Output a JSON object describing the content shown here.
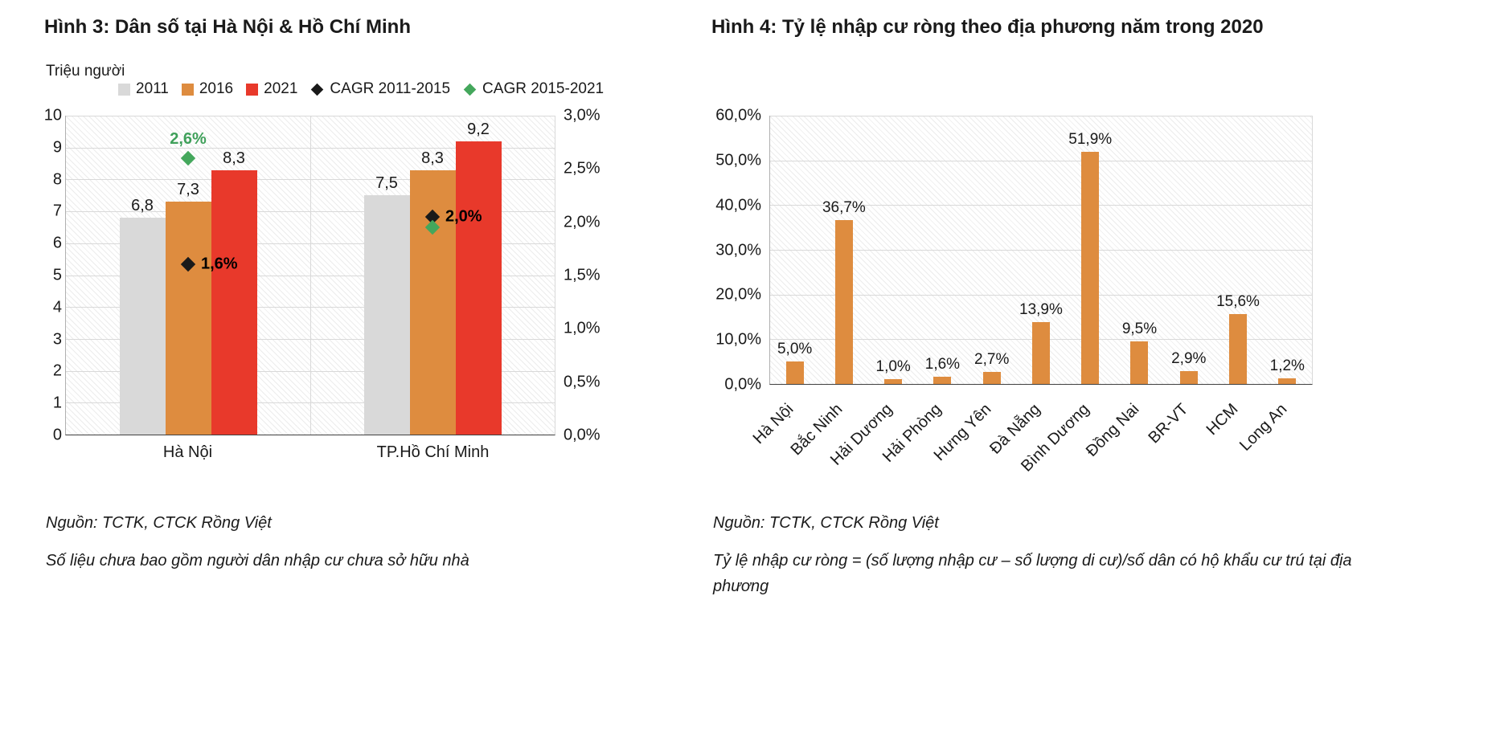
{
  "chart_data": [
    {
      "id": "fig3",
      "type": "bar",
      "title": "Hình 3: Dân số tại Hà Nội & Hồ Chí Minh",
      "ylabel": "Triệu người",
      "legend_position": "top",
      "grid": true,
      "plot_pattern": "diagonal-hatch",
      "legend": [
        {
          "label": "2011",
          "marker": "square",
          "color": "#D9D9D9"
        },
        {
          "label": "2016",
          "marker": "square",
          "color": "#DE8C3F"
        },
        {
          "label": "2021",
          "marker": "square",
          "color": "#E8392B"
        },
        {
          "label": "CAGR 2011-2015",
          "marker": "diamond",
          "color": "#1A1A1A"
        },
        {
          "label": "CAGR 2015-2021",
          "marker": "diamond",
          "color": "#44A75C"
        }
      ],
      "categories": [
        "Hà Nội",
        "TP.Hồ Chí Minh"
      ],
      "series": [
        {
          "name": "2011",
          "color": "#D9D9D9",
          "values": [
            6.8,
            7.5
          ],
          "labels": [
            "6,8",
            "7,5"
          ]
        },
        {
          "name": "2016",
          "color": "#DE8C3F",
          "values": [
            7.3,
            8.3
          ],
          "labels": [
            "7,3",
            "8,3"
          ]
        },
        {
          "name": "2021",
          "color": "#E8392B",
          "values": [
            8.3,
            9.2
          ],
          "labels": [
            "8,3",
            "9,2"
          ]
        }
      ],
      "cagr_series": [
        {
          "name": "CAGR 2011-2015",
          "color": "#1A1A1A",
          "label_color": "#000000",
          "points": [
            {
              "value": 1.6,
              "label": "1,6%",
              "label_pos": "right"
            },
            {
              "value": 2.05,
              "label": "2,0%",
              "label_pos": "right"
            }
          ]
        },
        {
          "name": "CAGR 2015-2021",
          "color": "#44A75C",
          "label_color": "#3FA05A",
          "points": [
            {
              "value": 2.6,
              "label": "2,6%",
              "label_pos": "above"
            },
            {
              "value": 1.95,
              "label": "",
              "label_pos": "above"
            }
          ]
        }
      ],
      "axis_left": {
        "min": 0,
        "max": 10,
        "ticks": [
          "10",
          "9",
          "8",
          "7",
          "6",
          "5",
          "4",
          "3",
          "2",
          "1",
          "0"
        ]
      },
      "axis_right": {
        "min": 0,
        "max": 3,
        "ticks": [
          "3,0%",
          "2,5%",
          "2,0%",
          "1,5%",
          "1,0%",
          "0,5%",
          "0,0%"
        ]
      },
      "source": "Nguồn: TCTK, CTCK Rồng Việt",
      "note": "Số liệu chưa bao gồm người dân nhập cư chưa sở hữu nhà"
    },
    {
      "id": "fig4",
      "type": "bar",
      "title": "Hình 4: Tỷ lệ nhập cư ròng theo địa phương năm trong 2020",
      "bar_color": "#DE8C3F",
      "grid": true,
      "plot_pattern": "diagonal-hatch",
      "categories": [
        "Hà Nội",
        "Bắc Ninh",
        "Hải Dương",
        "Hải Phòng",
        "Hưng Yên",
        "Đà Nẵng",
        "Bình Dương",
        "Đồng Nai",
        "BR-VT",
        "HCM",
        "Long An"
      ],
      "values": [
        5.0,
        36.7,
        1.0,
        1.6,
        2.7,
        13.9,
        51.9,
        9.5,
        2.9,
        15.6,
        1.2
      ],
      "labels": [
        "5,0%",
        "36,7%",
        "1,0%",
        "1,6%",
        "2,7%",
        "13,9%",
        "51,9%",
        "9,5%",
        "2,9%",
        "15,6%",
        "1,2%"
      ],
      "axis": {
        "min": 0,
        "max": 60,
        "ticks": [
          "60,0%",
          "50,0%",
          "40,0%",
          "30,0%",
          "20,0%",
          "10,0%",
          "0,0%"
        ]
      },
      "source": "Nguồn: TCTK, CTCK Rồng Việt",
      "note": "Tỷ lệ nhập cư ròng = (số lượng nhập cư – số lượng di cư)/số dân có hộ khẩu cư trú tại địa phương"
    }
  ]
}
